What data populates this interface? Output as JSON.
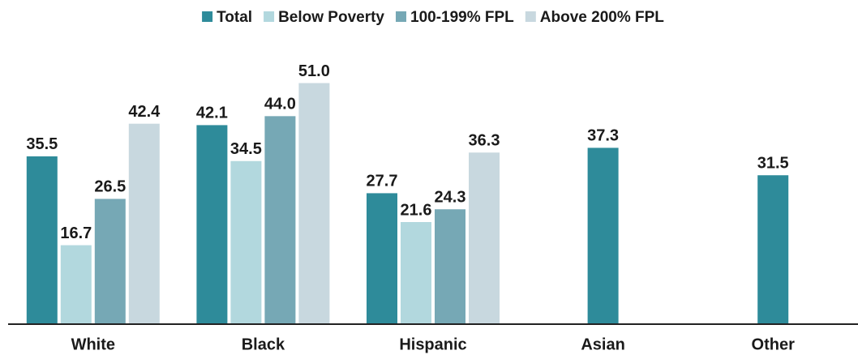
{
  "chart_data": {
    "type": "bar",
    "categories": [
      "White",
      "Black",
      "Hispanic",
      "Asian",
      "Other"
    ],
    "series": [
      {
        "name": "Total",
        "color": "#2e8b9a",
        "values": [
          35.5,
          42.1,
          27.7,
          37.3,
          31.5
        ]
      },
      {
        "name": "Below Poverty",
        "color": "#b2d8de",
        "values": [
          16.7,
          34.5,
          21.6,
          null,
          null
        ]
      },
      {
        "name": "100-199% FPL",
        "color": "#76a8b5",
        "values": [
          26.5,
          44.0,
          24.3,
          null,
          null
        ],
        "value_labels": [
          "26.5",
          "44.0",
          "24.3",
          null,
          null
        ]
      },
      {
        "name": "Above 200% FPL",
        "color": "#c8d8df",
        "values": [
          42.4,
          51.0,
          36.3,
          null,
          null
        ],
        "value_labels": [
          "42.4",
          "51.0",
          "36.3",
          null,
          null
        ]
      }
    ],
    "ylim": [
      0,
      60
    ],
    "legend": "top"
  }
}
